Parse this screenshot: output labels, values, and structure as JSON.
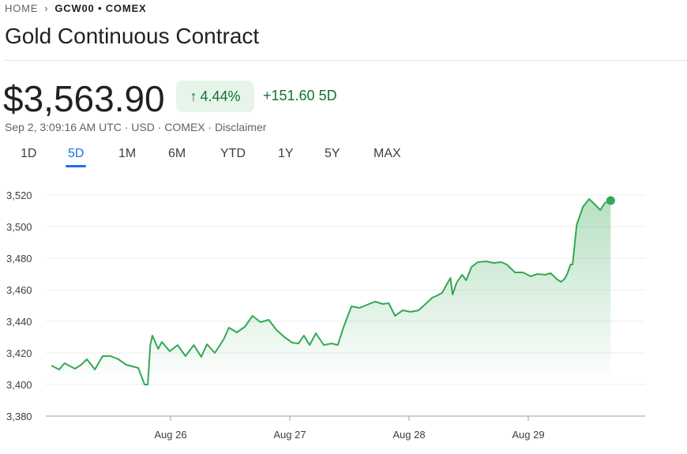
{
  "breadcrumb": {
    "home": "HOME",
    "separator": ">",
    "current": "GCW00 • COMEX"
  },
  "title": "Gold Continuous Contract",
  "quote": {
    "price": "$3,563.90",
    "change_pct": "4.44%",
    "change_abs": "+151.60 5D",
    "direction_icon": "arrow-up-icon"
  },
  "meta": "Sep 2, 3:09:16 AM UTC · USD · COMEX · Disclaimer",
  "tabs": [
    {
      "label": "1D"
    },
    {
      "label": "5D",
      "active": true
    },
    {
      "label": "1M"
    },
    {
      "label": "6M"
    },
    {
      "label": "YTD"
    },
    {
      "label": "1Y"
    },
    {
      "label": "5Y"
    },
    {
      "label": "MAX"
    }
  ],
  "colors": {
    "line": "#34a853",
    "positive": "#137333",
    "badge_bg": "#e6f4ea",
    "accent": "#1a73e8"
  },
  "chart_data": {
    "type": "area",
    "ylim": [
      3380,
      3520
    ],
    "yticks": [
      "3,520",
      "3,500",
      "3,480",
      "3,460",
      "3,440",
      "3,420",
      "3,400",
      "3,380"
    ],
    "ytick_values": [
      3520,
      3500,
      3480,
      3460,
      3440,
      3420,
      3400,
      3380
    ],
    "xticks": [
      "Aug 26",
      "Aug 27",
      "Aug 28",
      "Aug 29"
    ],
    "xlim": [
      "Aug 25 00:00",
      "Aug 29 23:59"
    ],
    "grid": true,
    "x": [
      "Aug 25 00:00",
      "Aug 25 01:35",
      "Aug 25 02:40",
      "Aug 25 04:45",
      "Aug 25 06:00",
      "Aug 25 07:10",
      "Aug 25 08:45",
      "Aug 25 10:20",
      "Aug 25 11:55",
      "Aug 25 13:30",
      "Aug 25 15:05",
      "Aug 25 17:30",
      "Aug 25 18:45",
      "Aug 25 19:25",
      "Aug 25 19:55",
      "Aug 25 20:20",
      "Aug 25 21:30",
      "Aug 25 22:15",
      "Aug 25 23:50",
      "Aug 26 01:25",
      "Aug 26 03:00",
      "Aug 26 04:40",
      "Aug 26 06:10",
      "Aug 26 07:20",
      "Aug 26 08:55",
      "Aug 26 10:40",
      "Aug 26 11:45",
      "Aug 26 13:20",
      "Aug 26 14:55",
      "Aug 26 16:30",
      "Aug 26 18:05",
      "Aug 26 19:45",
      "Aug 26 21:20",
      "Aug 26 22:55",
      "Aug 27 00:30",
      "Aug 27 01:45",
      "Aug 27 02:50",
      "Aug 27 04:00",
      "Aug 27 05:15",
      "Aug 27 06:50",
      "Aug 27 08:25",
      "Aug 27 09:40",
      "Aug 27 10:50",
      "Aug 27 12:25",
      "Aug 27 14:00",
      "Aug 27 15:35",
      "Aug 27 17:10",
      "Aug 27 18:45",
      "Aug 27 19:55",
      "Aug 27 21:10",
      "Aug 27 22:45",
      "Aug 28 00:20",
      "Aug 28 01:55",
      "Aug 28 03:30",
      "Aug 28 04:40",
      "Aug 28 05:25",
      "Aug 28 06:40",
      "Aug 28 07:30",
      "Aug 28 08:20",
      "Aug 28 08:45",
      "Aug 28 09:35",
      "Aug 28 10:40",
      "Aug 28 11:30",
      "Aug 28 12:35",
      "Aug 28 13:50",
      "Aug 28 15:30",
      "Aug 28 17:00",
      "Aug 28 18:35",
      "Aug 28 19:40",
      "Aug 28 21:20",
      "Aug 28 22:55",
      "Aug 29 00:30",
      "Aug 29 01:50",
      "Aug 29 03:25",
      "Aug 29 04:30",
      "Aug 29 05:50",
      "Aug 29 06:35",
      "Aug 29 07:20",
      "Aug 29 07:50",
      "Aug 29 08:30",
      "Aug 29 08:55",
      "Aug 29 09:45",
      "Aug 29 11:00",
      "Aug 29 12:15",
      "Aug 29 13:15",
      "Aug 29 14:30",
      "Aug 29 15:25",
      "Aug 29 16:35"
    ],
    "values": [
      3412,
      3409.5,
      3413.5,
      3410,
      3412.5,
      3416,
      3409.5,
      3418,
      3418,
      3416,
      3412.5,
      3410.5,
      3400,
      3400,
      3425,
      3431,
      3422.5,
      3427,
      3421,
      3425,
      3418,
      3425,
      3417.5,
      3425.5,
      3420,
      3428.5,
      3436,
      3433,
      3436.5,
      3443.5,
      3439.5,
      3441,
      3434.5,
      3430,
      3426.5,
      3426,
      3431,
      3425,
      3432.5,
      3425,
      3426,
      3425,
      3436.5,
      3449.5,
      3448.5,
      3450.5,
      3452.5,
      3451,
      3451.5,
      3443.5,
      3447,
      3446,
      3447,
      3451.5,
      3455,
      3456,
      3458,
      3463,
      3467.5,
      3457,
      3464.5,
      3469.5,
      3466,
      3474.5,
      3477.5,
      3478,
      3477,
      3477.5,
      3476,
      3471,
      3471,
      3468.5,
      3470,
      3469.5,
      3470.5,
      3466.5,
      3465,
      3467,
      3470,
      3476,
      3476,
      3501,
      3512.5,
      3517.5,
      3514.5,
      3510.5,
      3515,
      3516.5
    ]
  }
}
